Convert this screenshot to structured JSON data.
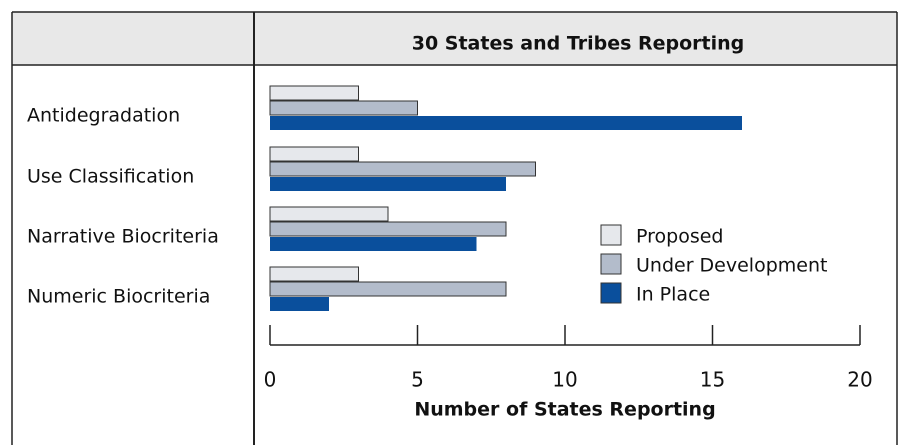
{
  "chart_data": {
    "type": "hbar",
    "title": "30 States and Tribes Reporting",
    "x_label": "Number of States Reporting",
    "categories": [
      "Antidegradation",
      "Use Classification",
      "Narrative Biocriteria",
      "Numeric Biocriteria"
    ],
    "series": [
      {
        "name": "Proposed",
        "color": "#e6e8ec",
        "values": [
          3,
          3,
          4,
          3
        ]
      },
      {
        "name": "Under Development",
        "color": "#b3bccb",
        "values": [
          5,
          9,
          8,
          8
        ]
      },
      {
        "name": "In Place",
        "color": "#0a4f9c",
        "values": [
          16,
          8,
          7,
          2
        ]
      }
    ],
    "xlim": [
      0,
      20
    ],
    "xticks": [
      0,
      5,
      10,
      15,
      20
    ]
  }
}
